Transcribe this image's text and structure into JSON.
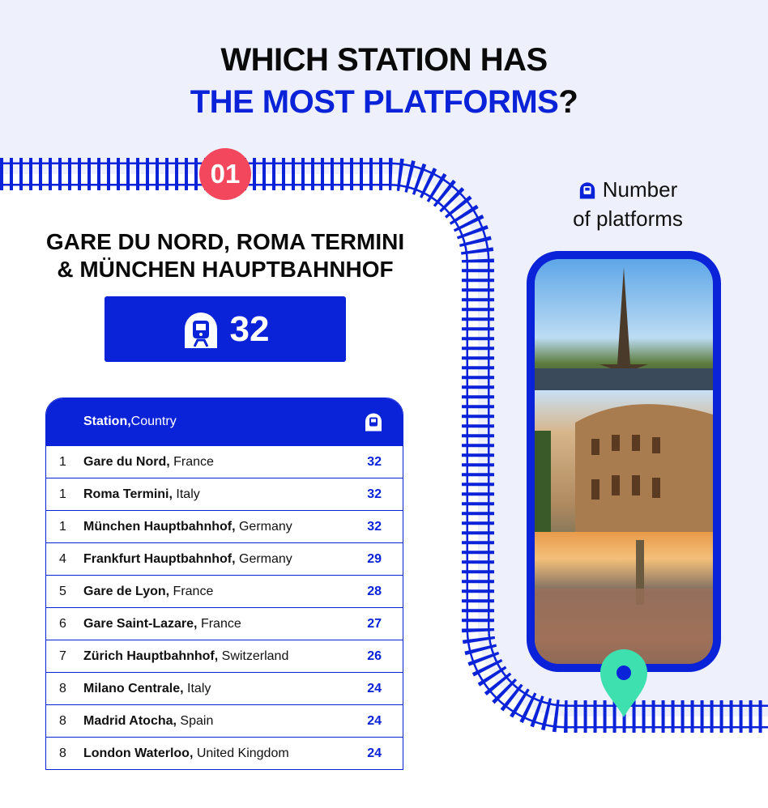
{
  "title": {
    "line1": "WHICH STATION HAS",
    "highlight": "THE MOST PLATFORMS",
    "suffix": "?"
  },
  "rank_badge": "01",
  "winners": {
    "line1": "GARE DU NORD, ROMA TERMINI",
    "line2": "& MÜNCHEN HAUPTBAHNHOF"
  },
  "top_value": "32",
  "legend": {
    "line1": "Number",
    "line2": "of platforms",
    "icon": "train-icon"
  },
  "table": {
    "header": {
      "station": "Station,",
      "country": " Country",
      "icon": "train-icon"
    },
    "rows": [
      {
        "rank": "1",
        "station": "Gare du Nord,",
        "country": " France",
        "platforms": "32"
      },
      {
        "rank": "1",
        "station": "Roma Termini,",
        "country": " Italy",
        "platforms": "32"
      },
      {
        "rank": "1",
        "station": "München Hauptbahnhof,",
        "country": " Germany",
        "platforms": "32"
      },
      {
        "rank": "4",
        "station": "Frankfurt Hauptbahnhof,",
        "country": " Germany",
        "platforms": "29"
      },
      {
        "rank": "5",
        "station": "Gare de Lyon,",
        "country": " France",
        "platforms": "28"
      },
      {
        "rank": "6",
        "station": "Gare Saint-Lazare,",
        "country": " France",
        "platforms": "27"
      },
      {
        "rank": "7",
        "station": "Zürich Hauptbahnhof,",
        "country": " Switzerland",
        "platforms": "26"
      },
      {
        "rank": "8",
        "station": "Milano Centrale,",
        "country": " Italy",
        "platforms": "24"
      },
      {
        "rank": "8",
        "station": "Madrid Atocha,",
        "country": " Spain",
        "platforms": "24"
      },
      {
        "rank": "8",
        "station": "London Waterloo,",
        "country": " United Kingdom",
        "platforms": "24"
      }
    ]
  },
  "colors": {
    "accent": "#0a22d8",
    "badge": "#f2475c",
    "pin": "#3ee0b0",
    "background": "#eef0fb"
  }
}
